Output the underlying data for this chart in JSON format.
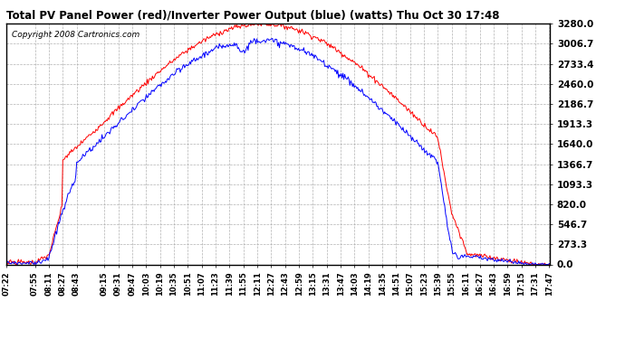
{
  "title": "Total PV Panel Power (red)/Inverter Power Output (blue) (watts) Thu Oct 30 17:48",
  "copyright": "Copyright 2008 Cartronics.com",
  "background_color": "#ffffff",
  "plot_bg_color": "#ffffff",
  "grid_color": "#aaaaaa",
  "y_max": 3280.0,
  "y_min": 0.0,
  "y_ticks": [
    0.0,
    273.3,
    546.7,
    820.0,
    1093.3,
    1366.7,
    1640.0,
    1913.3,
    2186.7,
    2460.0,
    2733.4,
    3006.7,
    3280.0
  ],
  "red_color": "#ff0000",
  "blue_color": "#0000ff",
  "x_tick_labels": [
    "07:22",
    "07:55",
    "08:11",
    "08:27",
    "08:43",
    "09:15",
    "09:31",
    "09:47",
    "10:03",
    "10:19",
    "10:35",
    "10:51",
    "11:07",
    "11:23",
    "11:39",
    "11:55",
    "12:11",
    "12:27",
    "12:43",
    "12:59",
    "13:15",
    "13:31",
    "13:47",
    "14:03",
    "14:19",
    "14:35",
    "14:51",
    "15:07",
    "15:23",
    "15:39",
    "15:55",
    "16:11",
    "16:27",
    "16:43",
    "16:59",
    "17:15",
    "17:31",
    "17:47"
  ]
}
